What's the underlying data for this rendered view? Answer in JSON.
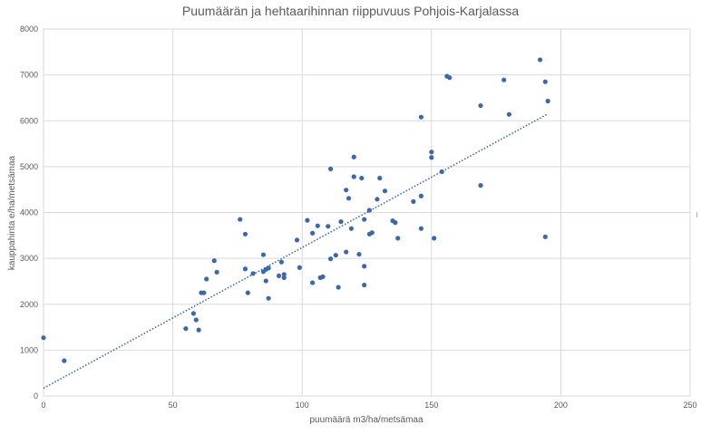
{
  "chart_data": {
    "type": "scatter",
    "title": "Puumäärän ja hehtaarihinnan riippuvuus Pohjois-Karjalassa",
    "xlabel": "puumäärä m3/ha/metsämaa",
    "ylabel": "kauppahinta e/ha/metsämaa",
    "xlim": [
      0,
      250
    ],
    "ylim": [
      0,
      8000
    ],
    "x_ticks": [
      "0",
      "50",
      "100",
      "150",
      "200",
      "250"
    ],
    "y_ticks": [
      "0",
      "1000",
      "2000",
      "3000",
      "4000",
      "5000",
      "6000",
      "7000",
      "8000"
    ],
    "grid": true,
    "legend": "none",
    "point_color": "#3a68b0",
    "trendline": {
      "type": "linear",
      "style": "dotted",
      "color": "#3a68b0",
      "x": [
        0,
        195
      ],
      "y": [
        170,
        6150
      ]
    },
    "series": [
      {
        "points": [
          [
            0,
            1270
          ],
          [
            8,
            770
          ],
          [
            55,
            1470
          ],
          [
            58,
            1800
          ],
          [
            59,
            1660
          ],
          [
            60,
            1440
          ],
          [
            61,
            2250
          ],
          [
            62,
            2250
          ],
          [
            63,
            2550
          ],
          [
            66,
            2950
          ],
          [
            67,
            2700
          ],
          [
            76,
            3850
          ],
          [
            78,
            2770
          ],
          [
            78,
            3530
          ],
          [
            79,
            2250
          ],
          [
            81,
            2670
          ],
          [
            85,
            3080
          ],
          [
            85,
            2710
          ],
          [
            86,
            2510
          ],
          [
            86,
            2760
          ],
          [
            87,
            2790
          ],
          [
            87,
            2130
          ],
          [
            91,
            2620
          ],
          [
            92,
            2920
          ],
          [
            93,
            2580
          ],
          [
            93,
            2650
          ],
          [
            98,
            3400
          ],
          [
            99,
            2800
          ],
          [
            102,
            3830
          ],
          [
            104,
            3550
          ],
          [
            104,
            2470
          ],
          [
            106,
            3710
          ],
          [
            107,
            2580
          ],
          [
            108,
            2600
          ],
          [
            110,
            3700
          ],
          [
            111,
            2990
          ],
          [
            111,
            4950
          ],
          [
            113,
            3070
          ],
          [
            114,
            2370
          ],
          [
            115,
            3800
          ],
          [
            117,
            3140
          ],
          [
            117,
            4490
          ],
          [
            118,
            4310
          ],
          [
            119,
            3650
          ],
          [
            120,
            4780
          ],
          [
            120,
            5210
          ],
          [
            122,
            3090
          ],
          [
            123,
            4750
          ],
          [
            124,
            3850
          ],
          [
            124,
            2830
          ],
          [
            124,
            2420
          ],
          [
            126,
            3530
          ],
          [
            126,
            4050
          ],
          [
            127,
            3560
          ],
          [
            129,
            4290
          ],
          [
            130,
            4750
          ],
          [
            132,
            4470
          ],
          [
            135,
            3820
          ],
          [
            136,
            3780
          ],
          [
            137,
            3440
          ],
          [
            143,
            4240
          ],
          [
            146,
            6080
          ],
          [
            146,
            4360
          ],
          [
            146,
            3650
          ],
          [
            150,
            5200
          ],
          [
            150,
            5320
          ],
          [
            151,
            3440
          ],
          [
            154,
            4890
          ],
          [
            156,
            6970
          ],
          [
            157,
            6940
          ],
          [
            169,
            6330
          ],
          [
            169,
            4590
          ],
          [
            178,
            6890
          ],
          [
            180,
            6140
          ],
          [
            192,
            7330
          ],
          [
            194,
            6850
          ],
          [
            194,
            3470
          ],
          [
            195,
            6430
          ]
        ]
      }
    ]
  }
}
